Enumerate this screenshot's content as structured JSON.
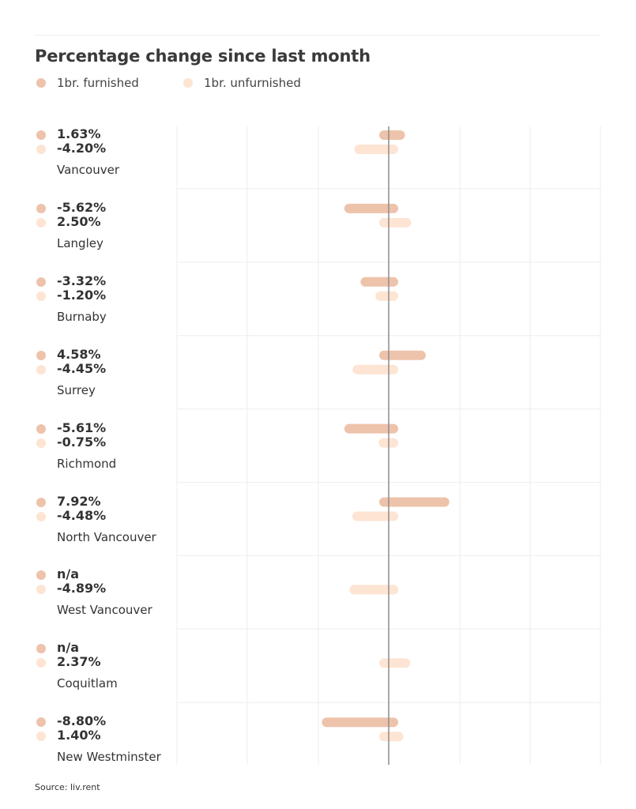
{
  "title": "Percentage change since last month",
  "legend": [
    {
      "label": "1br. furnished",
      "color": "#eec3ab"
    },
    {
      "label": "1br. unfurnished",
      "color": "#fde4d3"
    }
  ],
  "source": "Source: liv.rent",
  "chart_data": {
    "type": "bar",
    "orientation": "horizontal",
    "title": "Percentage change since last month",
    "categories": [
      "Vancouver",
      "Langley",
      "Burnaby",
      "Surrey",
      "Richmond",
      "North Vancouver",
      "West Vancouver",
      "Coquitlam",
      "New Westminster"
    ],
    "series": [
      {
        "name": "1br. furnished",
        "color": "#eec3ab",
        "values": [
          1.63,
          -5.62,
          -3.32,
          4.58,
          -5.61,
          7.92,
          null,
          null,
          -8.8
        ],
        "labels": [
          "1.63%",
          "-5.62%",
          "-3.32%",
          "4.58%",
          "-5.61%",
          "7.92%",
          "n/a",
          "n/a",
          "-8.80%"
        ]
      },
      {
        "name": "1br. unfurnished",
        "color": "#fde4d3",
        "values": [
          -4.2,
          2.5,
          -1.2,
          -4.45,
          -0.75,
          -4.48,
          -4.89,
          2.37,
          1.4
        ],
        "labels": [
          "-4.20%",
          "2.50%",
          "-1.20%",
          "-4.45%",
          "-0.75%",
          "-4.48%",
          "-4.89%",
          "2.37%",
          "1.40%"
        ]
      }
    ],
    "xlim": [
      -30,
      30
    ],
    "grid": true,
    "legend_position": "top-left",
    "zero_line": true
  }
}
